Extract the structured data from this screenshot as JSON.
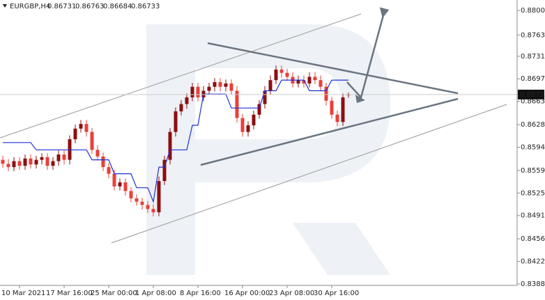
{
  "chart_data": {
    "type": "candlestick",
    "symbol": "EURGBP,H4",
    "ylim": [
      0.83859,
      0.88157
    ],
    "yticks": [
      {
        "value": 0.88,
        "label": "0.88000"
      },
      {
        "value": 0.8763,
        "label": "0.87630"
      },
      {
        "value": 0.8731,
        "label": "0.87310"
      },
      {
        "value": 0.8697,
        "label": "0.86970"
      },
      {
        "value": 0.8663,
        "label": "0.86630"
      },
      {
        "value": 0.8628,
        "label": "0.86280"
      },
      {
        "value": 0.8594,
        "label": "0.85940"
      },
      {
        "value": 0.8559,
        "label": "0.85590"
      },
      {
        "value": 0.8525,
        "label": "0.85250"
      },
      {
        "value": 0.8491,
        "label": "0.84910"
      },
      {
        "value": 0.8456,
        "label": "0.84560"
      },
      {
        "value": 0.8422,
        "label": "0.84220"
      },
      {
        "value": 0.8388,
        "label": "0.83880"
      }
    ],
    "xlim": [
      -0.5,
      92.25
    ],
    "xticks": [
      {
        "value": 3,
        "label": "10 Mar 2021"
      },
      {
        "value": 11,
        "label": "17 Mar 16:00"
      },
      {
        "value": 19,
        "label": "25 Mar 00:00"
      },
      {
        "value": 27,
        "label": "1 Apr 08:00"
      },
      {
        "value": 35,
        "label": "8 Apr 16:00"
      },
      {
        "value": 43,
        "label": "16 Apr 00:00"
      },
      {
        "value": 51,
        "label": "23 Apr 08:00"
      },
      {
        "value": 59,
        "label": "30 Apr 16:00"
      }
    ],
    "up_color": "#8b1010",
    "down_color": "#e8403a",
    "line_color": "#1f2fd6",
    "open": [
      0.8575,
      0.8569,
      0.8564,
      0.8573,
      0.8566,
      0.8577,
      0.8568,
      0.8575,
      0.8579,
      0.8566,
      0.8573,
      0.8583,
      0.8575,
      0.8606,
      0.8622,
      0.8629,
      0.8617,
      0.859,
      0.858,
      0.8564,
      0.8554,
      0.8535,
      0.8541,
      0.8528,
      0.8517,
      0.8512,
      0.8507,
      0.8501,
      0.8496,
      0.8543,
      0.8575,
      0.8617,
      0.8648,
      0.8659,
      0.8669,
      0.8685,
      0.8669,
      0.8679,
      0.8685,
      0.8692,
      0.8685,
      0.869,
      0.8679,
      0.8638,
      0.8617,
      0.8627,
      0.8643,
      0.8659,
      0.8679,
      0.8695,
      0.8711,
      0.8706,
      0.87,
      0.869,
      0.8695,
      0.869,
      0.87,
      0.8695,
      0.8685,
      0.8664,
      0.8643,
      0.8632,
      0.86731
    ],
    "high": [
      0.8581,
      0.8576,
      0.8579,
      0.8579,
      0.8583,
      0.8583,
      0.8581,
      0.8585,
      0.8585,
      0.8579,
      0.8589,
      0.8589,
      0.8612,
      0.8628,
      0.8635,
      0.8635,
      0.8623,
      0.8597,
      0.8586,
      0.857,
      0.856,
      0.8547,
      0.8547,
      0.8534,
      0.8523,
      0.8518,
      0.8513,
      0.8508,
      0.855,
      0.8581,
      0.8623,
      0.8654,
      0.8665,
      0.8675,
      0.8691,
      0.8691,
      0.8686,
      0.8691,
      0.8698,
      0.8698,
      0.8696,
      0.8696,
      0.8686,
      0.8644,
      0.8633,
      0.8649,
      0.8665,
      0.8686,
      0.8702,
      0.8717,
      0.8717,
      0.8712,
      0.8707,
      0.8702,
      0.8702,
      0.8707,
      0.8707,
      0.8702,
      0.8691,
      0.867,
      0.8649,
      0.8675,
      0.86763
    ],
    "low": [
      0.8563,
      0.8558,
      0.8558,
      0.856,
      0.856,
      0.8562,
      0.8562,
      0.8568,
      0.856,
      0.856,
      0.8566,
      0.8568,
      0.8568,
      0.86,
      0.8616,
      0.861,
      0.8584,
      0.8574,
      0.8558,
      0.8547,
      0.8529,
      0.8529,
      0.8521,
      0.8511,
      0.8506,
      0.85,
      0.8495,
      0.849,
      0.849,
      0.8537,
      0.8568,
      0.861,
      0.8642,
      0.8652,
      0.8663,
      0.8663,
      0.8663,
      0.8673,
      0.8678,
      0.8678,
      0.8678,
      0.8673,
      0.8631,
      0.861,
      0.861,
      0.8621,
      0.8637,
      0.8652,
      0.8673,
      0.8689,
      0.8699,
      0.8694,
      0.8684,
      0.8684,
      0.8684,
      0.8684,
      0.8689,
      0.8678,
      0.8657,
      0.8637,
      0.8626,
      0.8626,
      0.86684
    ],
    "close": [
      0.8569,
      0.8564,
      0.8573,
      0.8566,
      0.8577,
      0.8568,
      0.8575,
      0.8579,
      0.8566,
      0.8573,
      0.8583,
      0.8575,
      0.8606,
      0.8622,
      0.8629,
      0.8617,
      0.859,
      0.858,
      0.8564,
      0.8554,
      0.8535,
      0.8541,
      0.8528,
      0.8517,
      0.8512,
      0.8507,
      0.8501,
      0.8496,
      0.8543,
      0.8575,
      0.8617,
      0.8648,
      0.8659,
      0.8669,
      0.8685,
      0.8669,
      0.8679,
      0.8685,
      0.8692,
      0.8685,
      0.869,
      0.8679,
      0.8638,
      0.8617,
      0.8627,
      0.8643,
      0.8659,
      0.8679,
      0.8695,
      0.8711,
      0.8706,
      0.87,
      0.869,
      0.8695,
      0.869,
      0.87,
      0.8695,
      0.8685,
      0.8664,
      0.8643,
      0.8632,
      0.8669,
      0.86733
    ],
    "kijun": [
      0.8601,
      0.8601,
      0.8601,
      0.8601,
      0.8601,
      0.8601,
      0.859,
      0.859,
      0.859,
      0.859,
      0.859,
      0.859,
      0.859,
      0.859,
      0.859,
      0.859,
      0.8575,
      0.8575,
      0.8575,
      0.8575,
      0.8554,
      0.8554,
      0.8554,
      0.8554,
      0.8533,
      0.8533,
      0.8533,
      0.8512,
      0.8564,
      0.8564,
      0.859,
      0.859,
      0.859,
      0.859,
      0.8627,
      0.8627,
      0.8674,
      0.8674,
      0.8674,
      0.8674,
      0.8674,
      0.8653,
      0.8653,
      0.8653,
      0.8653,
      0.8653,
      0.8653,
      0.8679,
      0.8679,
      0.8679,
      0.8695,
      0.8695,
      0.8695,
      0.8695,
      0.8695,
      0.8679,
      0.8679,
      0.8679,
      0.8679,
      0.8695,
      0.8695,
      0.8695,
      0.8695
    ]
  }
}
